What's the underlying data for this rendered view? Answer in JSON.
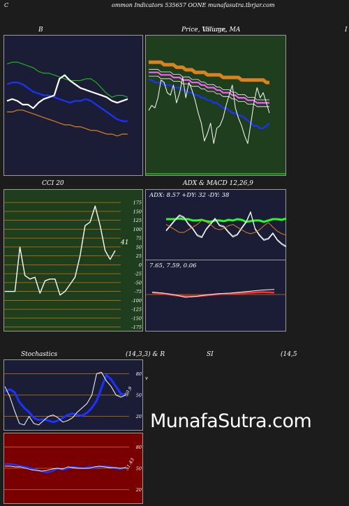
{
  "header": {
    "left_letter": "C",
    "title": "ommon  Indicators 535657 OONE munafasutra.tbrjar.com"
  },
  "panels": {
    "bollinger": {
      "title": "B"
    },
    "price": {
      "title": "Price,  Volume,  MA",
      "overlay_title": "Ulliugr,",
      "edge_letter": "I"
    },
    "cci": {
      "title": "CCI 20",
      "last_value": "41"
    },
    "adx": {
      "title": "ADX  & MACD 12,26,9",
      "adx_text": "ADX: 8.57 +DY: 32  -DY: 38",
      "macd_text": "7.65,  7.59,  0.06"
    },
    "stochastics": {
      "title_left": "Stochastics",
      "title_mid": "(14,3,3) & R",
      "title_si": "SI",
      "title_right": "(14,5",
      "side_label": "v",
      "last_value": "50.9"
    },
    "rsi": {
      "last_value": "51.43"
    }
  },
  "watermark": "MunafaSutra.com",
  "colors": {
    "navy_bg": "#1b1d36",
    "green_bg": "#1e3e1e",
    "red_bg": "#7a0000",
    "white": "#ffffff",
    "blue": "#1a33ff",
    "orange": "#d9821f",
    "green": "#22b022"
  },
  "chart_data": [
    {
      "type": "line",
      "panel": "bollinger",
      "series": [
        {
          "color": "#ffffff",
          "values": [
            38,
            39,
            38,
            36,
            36,
            34,
            37,
            39,
            40,
            41,
            50,
            52,
            49,
            47,
            45,
            44,
            43,
            42,
            41,
            40,
            38,
            37,
            38,
            39
          ]
        },
        {
          "color": "#1a33ff",
          "values": [
            47,
            48,
            48,
            47,
            45,
            43,
            42,
            41,
            41,
            40,
            39,
            38,
            37,
            38,
            38,
            39,
            38,
            36,
            34,
            32,
            30,
            28,
            27,
            27
          ]
        },
        {
          "color": "#22b022",
          "values": [
            58,
            59,
            59,
            58,
            57,
            56,
            54,
            53,
            53,
            52,
            51,
            50,
            49,
            49,
            49,
            50,
            50,
            48,
            45,
            42,
            40,
            41,
            41,
            40
          ]
        },
        {
          "color": "#d9821f",
          "values": [
            32,
            32,
            33,
            33,
            32,
            31,
            30,
            29,
            28,
            27,
            26,
            25,
            25,
            24,
            24,
            23,
            22,
            22,
            21,
            20,
            20,
            19,
            20,
            20
          ]
        }
      ]
    },
    {
      "type": "line",
      "panel": "price",
      "series": [
        {
          "color": "#d9821f",
          "values": [
            62,
            62,
            62,
            62,
            62,
            61,
            61,
            61,
            61,
            60,
            60,
            60,
            59,
            59,
            59,
            58,
            58,
            58,
            58,
            57,
            57,
            57,
            57,
            57,
            56,
            56,
            56,
            56,
            56,
            56,
            55,
            55,
            55,
            55,
            55,
            55,
            55,
            55,
            54,
            54
          ]
        },
        {
          "color": "#ff5cff",
          "values": [
            58,
            58,
            58,
            58,
            57,
            57,
            57,
            57,
            56,
            56,
            56,
            55,
            55,
            55,
            54,
            54,
            54,
            53,
            53,
            52,
            52,
            52,
            51,
            51,
            50,
            50,
            50,
            49,
            49,
            48,
            48,
            48,
            47,
            47,
            47,
            46,
            46,
            46,
            46,
            46
          ]
        },
        {
          "color": "#1a33ff",
          "values": [
            55,
            55,
            54,
            54,
            54,
            53,
            53,
            53,
            52,
            52,
            52,
            51,
            51,
            50,
            50,
            49,
            49,
            48,
            48,
            47,
            47,
            46,
            46,
            45,
            44,
            44,
            43,
            42,
            42,
            41,
            41,
            40,
            39,
            38,
            37,
            37,
            36,
            36,
            37,
            38
          ]
        },
        {
          "color": "#ffffff",
          "values": [
            43,
            45,
            44,
            48,
            55,
            54,
            50,
            49,
            53,
            46,
            50,
            56,
            48,
            54,
            51,
            47,
            42,
            38,
            31,
            34,
            38,
            30,
            36,
            37,
            40,
            45,
            49,
            53,
            44,
            40,
            37,
            33,
            30,
            38,
            46,
            52,
            48,
            50,
            46,
            42
          ]
        }
      ]
    },
    {
      "type": "line",
      "panel": "cci",
      "ylim": [
        -175,
        200
      ],
      "yticks": [
        175,
        150,
        125,
        100,
        75,
        50,
        25,
        0,
        -25,
        -50,
        -75,
        -100,
        -125,
        -150,
        -175
      ],
      "values": [
        -75,
        -75,
        -75,
        50,
        -30,
        -40,
        -35,
        -80,
        -45,
        -40,
        -40,
        -85,
        -75,
        -55,
        -35,
        25,
        110,
        120,
        165,
        110,
        40,
        15,
        40
      ]
    },
    {
      "type": "line",
      "panel": "adx",
      "series": [
        {
          "name": "ADX",
          "color": "#22ff22",
          "values": [
            60,
            60,
            60,
            61,
            60,
            60,
            58,
            58,
            59,
            57,
            56,
            58,
            58,
            57,
            59,
            58,
            60,
            59,
            56,
            57,
            58,
            58,
            56,
            58,
            60,
            60,
            59,
            61
          ]
        },
        {
          "name": "+DY",
          "color": "#ffffff",
          "values": [
            42,
            50,
            58,
            65,
            62,
            52,
            45,
            35,
            32,
            44,
            52,
            60,
            50,
            48,
            40,
            33,
            36,
            46,
            55,
            70,
            45,
            35,
            28,
            30,
            38,
            28,
            22,
            18
          ]
        },
        {
          "name": "-DY",
          "color": "#d9821f",
          "values": [
            52,
            48,
            44,
            40,
            40,
            44,
            48,
            52,
            58,
            56,
            52,
            46,
            44,
            46,
            50,
            52,
            48,
            44,
            40,
            38,
            40,
            44,
            50,
            55,
            48,
            42,
            38,
            36
          ]
        }
      ]
    },
    {
      "type": "line",
      "panel": "macd",
      "values": [
        7.6,
        7.58,
        7.55,
        7.5,
        7.52,
        7.55,
        7.57,
        7.58,
        7.6,
        7.62,
        7.64,
        7.65
      ],
      "signal": [
        7.59,
        7.57,
        7.54,
        7.52,
        7.52,
        7.54,
        7.56,
        7.57,
        7.58,
        7.59,
        7.6,
        7.59
      ]
    },
    {
      "type": "line",
      "panel": "stochastics",
      "yticks": [
        80,
        50,
        20
      ],
      "series": [
        {
          "color": "#1a33ff",
          "values": [
            55,
            58,
            54,
            40,
            32,
            26,
            18,
            15,
            16,
            14,
            12,
            14,
            18,
            22,
            24,
            22,
            21,
            25,
            32,
            42,
            60,
            78,
            72,
            62,
            52,
            50
          ]
        },
        {
          "color": "#ffffff",
          "values": [
            62,
            48,
            28,
            10,
            8,
            20,
            10,
            8,
            14,
            20,
            22,
            18,
            12,
            14,
            18,
            26,
            32,
            38,
            50,
            80,
            82,
            70,
            62,
            50,
            47,
            50
          ]
        }
      ]
    },
    {
      "type": "line",
      "panel": "rsi",
      "yticks": [
        80,
        50,
        20
      ],
      "series": [
        {
          "color": "#1a33ff",
          "values": [
            56,
            56,
            55,
            53,
            52,
            50,
            48,
            46,
            44,
            46,
            50,
            48,
            50,
            52,
            51,
            50,
            52,
            51,
            52,
            53,
            52,
            50,
            49,
            51
          ]
        },
        {
          "color": "#ffffff",
          "values": [
            53,
            53,
            52,
            52,
            50,
            48,
            47,
            46,
            47,
            49,
            50,
            49,
            52,
            51,
            50,
            50,
            50,
            52,
            53,
            52,
            51,
            51,
            50,
            51
          ]
        }
      ]
    }
  ]
}
